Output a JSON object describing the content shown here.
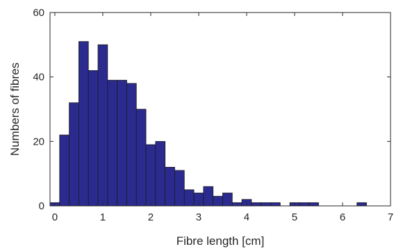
{
  "chart_data": {
    "type": "bar",
    "title": "",
    "xlabel": "Fibre length [cm]",
    "ylabel": "Numbers of fibres",
    "xlim": [
      -0.1,
      7
    ],
    "ylim": [
      0,
      60
    ],
    "xticks": [
      0,
      1,
      2,
      3,
      4,
      5,
      6,
      7
    ],
    "yticks": [
      0,
      20,
      40,
      60
    ],
    "bin_width": 0.2,
    "bin_starts": [
      -0.1,
      0.1,
      0.3,
      0.5,
      0.7,
      0.9,
      1.1,
      1.3,
      1.5,
      1.7,
      1.9,
      2.1,
      2.3,
      2.5,
      2.7,
      2.9,
      3.1,
      3.3,
      3.5,
      3.7,
      3.9,
      4.1,
      4.3,
      4.5,
      4.7,
      4.9,
      5.1,
      5.3,
      5.5,
      5.7,
      5.9,
      6.1,
      6.3,
      6.5,
      6.7
    ],
    "values": [
      1,
      22,
      32,
      51,
      42,
      50,
      39,
      39,
      38,
      30,
      19,
      20,
      12,
      11,
      5,
      4,
      6,
      3,
      4,
      1,
      2,
      1,
      1,
      1,
      0,
      1,
      1,
      1,
      0,
      0,
      0,
      0,
      1,
      0,
      0
    ],
    "bar_color": "#2b2b8f",
    "grid": false
  }
}
